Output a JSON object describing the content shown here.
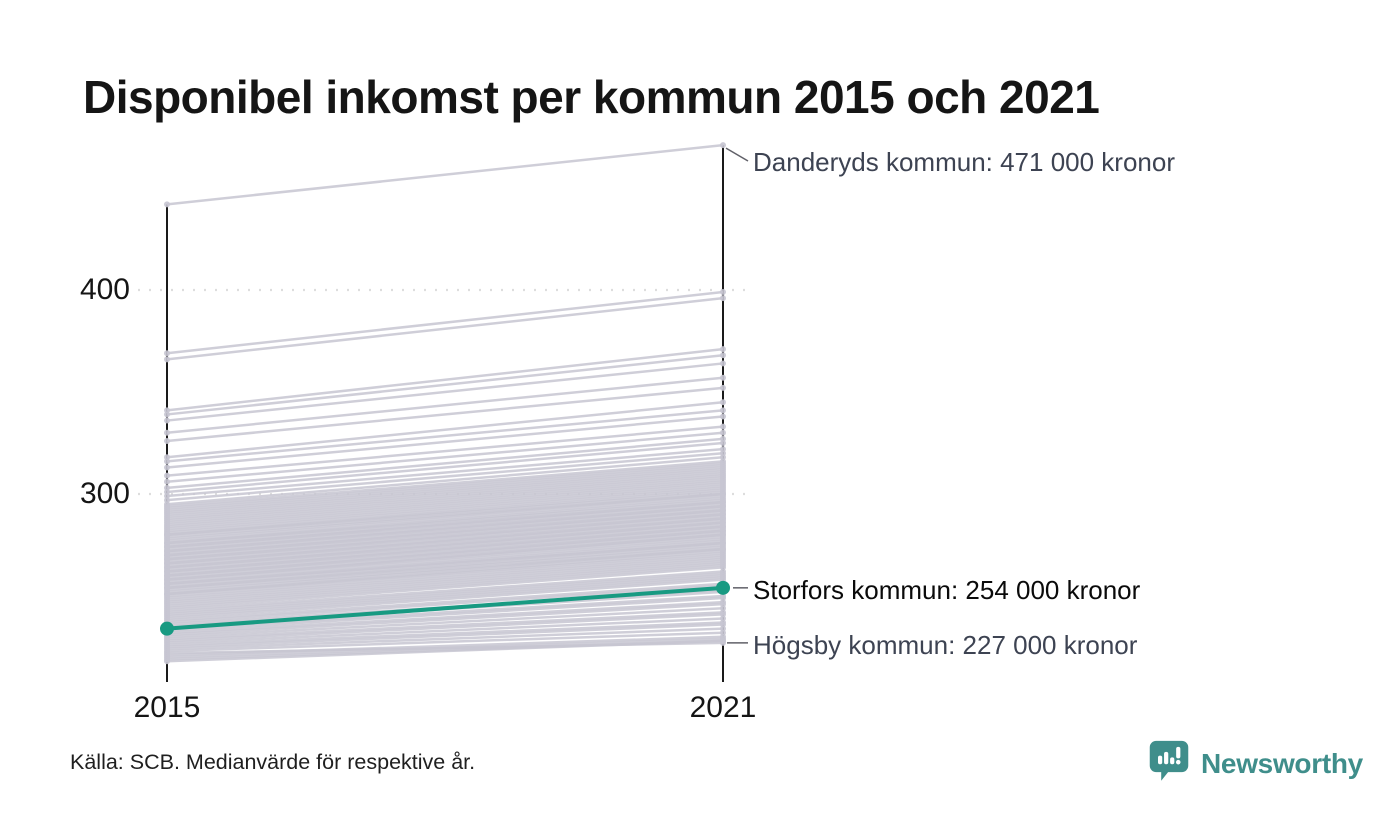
{
  "title": "Disponibel inkomst per kommun 2015 och 2021",
  "source": "Källa: SCB. Medianvärde för respektive år.",
  "branding": {
    "name": "Newsworthy",
    "color": "#3f8e8b"
  },
  "chart_data": {
    "type": "line",
    "subtype": "slope-chart",
    "x": [
      2015,
      2021
    ],
    "x_labels": [
      "2015",
      "2021"
    ],
    "y_ticks": [
      400,
      300
    ],
    "y_tick_labels": [
      "400",
      "300"
    ],
    "unit": "tusen kronor (disponibel inkomst, medianvärde)",
    "y_range_shown": [
      218,
      471
    ],
    "grid": "dotted horizontal at ticks",
    "series_color": "#c7c5d1",
    "highlight_color": "#189a82",
    "axis_color": "#1a1a1a",
    "grid_color": "#dddddd",
    "connector_color": "#606068",
    "annotations": [
      {
        "id": "danderyd",
        "label": "Danderyds kommun: 471 000 kronor",
        "values": [
          442,
          471
        ],
        "highlight": false
      },
      {
        "id": "storfors",
        "label": "Storfors kommun: 254 000 kronor",
        "values": [
          234,
          254
        ],
        "highlight": true
      },
      {
        "id": "hogsby",
        "label": "Högsby kommun: 227 000 kronor",
        "values": [
          222,
          227
        ],
        "highlight": false
      }
    ],
    "lines": [
      [
        442,
        471
      ],
      [
        369,
        399
      ],
      [
        366,
        396
      ],
      [
        341,
        371
      ],
      [
        339,
        368
      ],
      [
        336,
        364
      ],
      [
        330,
        357
      ],
      [
        326,
        352
      ],
      [
        318,
        345
      ],
      [
        316,
        341
      ],
      [
        313,
        338
      ],
      [
        309,
        333
      ],
      [
        306,
        330
      ],
      [
        303,
        327
      ],
      [
        301,
        325
      ],
      [
        299,
        322
      ],
      [
        297,
        320
      ],
      [
        295,
        318
      ],
      [
        294,
        316
      ],
      [
        293,
        315
      ],
      [
        292,
        314
      ],
      [
        291,
        313
      ],
      [
        290,
        312
      ],
      [
        289,
        311
      ],
      [
        288,
        310
      ],
      [
        287,
        309
      ],
      [
        286,
        308
      ],
      [
        285,
        307
      ],
      [
        284,
        306
      ],
      [
        283,
        305
      ],
      [
        282,
        304
      ],
      [
        281,
        303
      ],
      [
        280,
        302
      ],
      [
        280,
        301
      ],
      [
        279,
        300
      ],
      [
        278,
        300
      ],
      [
        277,
        299
      ],
      [
        276,
        298
      ],
      [
        276,
        297
      ],
      [
        275,
        296
      ],
      [
        274,
        296
      ],
      [
        274,
        295
      ],
      [
        273,
        294
      ],
      [
        272,
        294
      ],
      [
        272,
        293
      ],
      [
        271,
        292
      ],
      [
        270,
        292
      ],
      [
        270,
        291
      ],
      [
        269,
        290
      ],
      [
        268,
        290
      ],
      [
        268,
        289
      ],
      [
        267,
        288
      ],
      [
        266,
        288
      ],
      [
        266,
        287
      ],
      [
        265,
        286
      ],
      [
        264,
        286
      ],
      [
        264,
        285
      ],
      [
        263,
        284
      ],
      [
        262,
        284
      ],
      [
        262,
        283
      ],
      [
        261,
        282
      ],
      [
        260,
        282
      ],
      [
        260,
        281
      ],
      [
        259,
        280
      ],
      [
        258,
        280
      ],
      [
        258,
        279
      ],
      [
        257,
        278
      ],
      [
        256,
        277
      ],
      [
        256,
        276
      ],
      [
        255,
        276
      ],
      [
        254,
        275
      ],
      [
        254,
        274
      ],
      [
        253,
        273
      ],
      [
        252,
        273
      ],
      [
        251,
        272
      ],
      [
        251,
        271
      ],
      [
        250,
        270
      ],
      [
        249,
        269
      ],
      [
        248,
        268
      ],
      [
        247,
        267
      ],
      [
        246,
        266
      ],
      [
        245,
        265
      ],
      [
        244,
        264
      ],
      [
        243,
        262
      ],
      [
        242,
        261
      ],
      [
        241,
        260
      ],
      [
        240,
        259
      ],
      [
        239,
        258
      ],
      [
        238,
        256
      ],
      [
        237,
        255
      ],
      [
        236,
        253
      ],
      [
        235,
        252
      ],
      [
        234,
        250
      ],
      [
        233,
        249
      ],
      [
        232,
        247
      ],
      [
        231,
        246
      ],
      [
        230,
        244
      ],
      [
        229,
        242
      ],
      [
        228,
        241
      ],
      [
        227,
        239
      ],
      [
        226,
        237
      ],
      [
        225,
        236
      ],
      [
        224,
        234
      ],
      [
        223,
        232
      ],
      [
        222,
        227
      ],
      [
        221,
        230
      ],
      [
        220,
        229
      ],
      [
        219,
        228
      ],
      [
        218,
        228
      ]
    ]
  }
}
